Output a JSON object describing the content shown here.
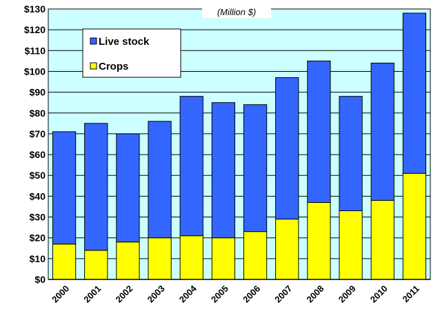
{
  "chart_data": {
    "type": "bar",
    "stacked": true,
    "subtitle": "(Million $)",
    "categories": [
      "2000",
      "2001",
      "2002",
      "2003",
      "2004",
      "2005",
      "2006",
      "2007",
      "2008",
      "2009",
      "2010",
      "2011"
    ],
    "series": [
      {
        "name": "Crops",
        "color": "#ffff00",
        "values": [
          17,
          14,
          18,
          20,
          21,
          20,
          23,
          29,
          37,
          33,
          38,
          51
        ]
      },
      {
        "name": "Live stock",
        "color": "#3366ff",
        "values": [
          54,
          61,
          52,
          56,
          67,
          65,
          61,
          68,
          68,
          55,
          66,
          77
        ]
      }
    ],
    "ylim": [
      0,
      130
    ],
    "ytick_step": 10,
    "ytick_labels": [
      "$0",
      "$10",
      "$20",
      "$30",
      "$40",
      "$50",
      "$60",
      "$70",
      "$80",
      "$90",
      "$100",
      "$110",
      "$120",
      "$130"
    ],
    "legend": {
      "placement": "top-left",
      "entries": [
        "Live stock",
        "Crops"
      ]
    },
    "grid": true,
    "plot_background": "#ccffff"
  }
}
